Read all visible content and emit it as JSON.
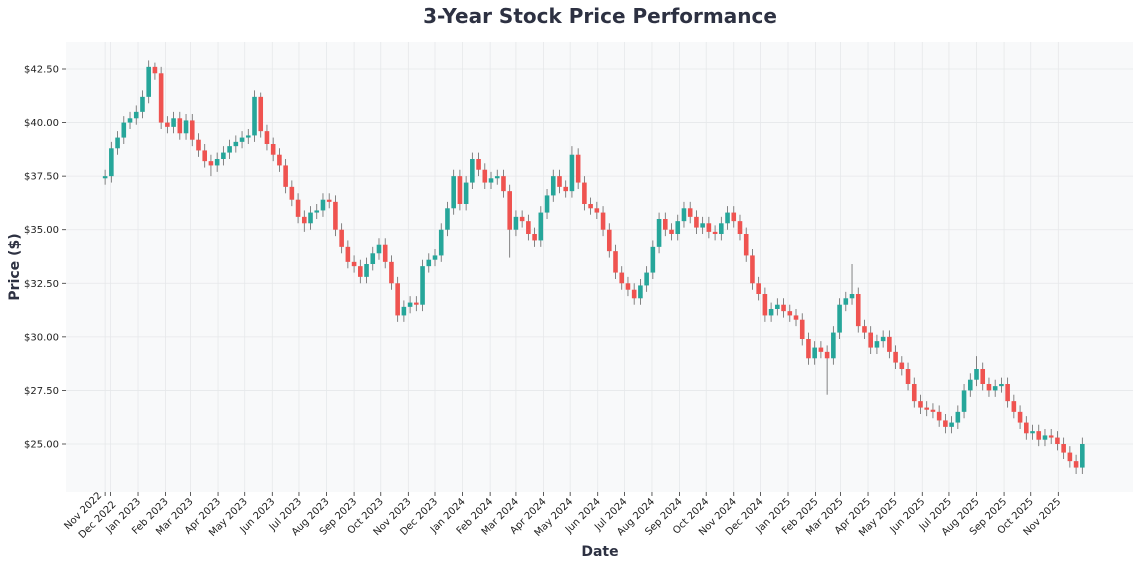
{
  "chart_data": {
    "type": "candlestick",
    "title": "3-Year Stock Price Performance",
    "xlabel": "Date",
    "ylabel": "Price ($)",
    "ylim": [
      22.76,
      43.76
    ],
    "xlim": [
      "2022-10-12",
      "2026-01-24"
    ],
    "grid": true,
    "colors": {
      "up": "#26a69a",
      "down": "#ef5350",
      "title": "#2d3142",
      "plot_bg": "#f8f9fa",
      "grid": "#e6e8ea"
    },
    "yticks": [
      25,
      27.5,
      30,
      32.5,
      35,
      37.5,
      40,
      42.5
    ],
    "ytick_labels": [
      "$25.00",
      "$27.50",
      "$30.00",
      "$32.50",
      "$35.00",
      "$37.50",
      "$40.00",
      "$42.50"
    ],
    "xticks": [
      "2022-11-25",
      "2022-12-01",
      "2023-01-01",
      "2023-02-01",
      "2023-03-01",
      "2023-04-01",
      "2023-05-01",
      "2023-06-01",
      "2023-07-01",
      "2023-08-01",
      "2023-09-01",
      "2023-10-01",
      "2023-11-01",
      "2023-12-01",
      "2024-01-01",
      "2024-02-01",
      "2024-03-01",
      "2024-04-01",
      "2024-05-01",
      "2024-06-01",
      "2024-07-01",
      "2024-08-01",
      "2024-09-01",
      "2024-10-01",
      "2024-11-01",
      "2024-12-01",
      "2025-01-01",
      "2025-02-01",
      "2025-03-01",
      "2025-04-01",
      "2025-05-01",
      "2025-06-01",
      "2025-07-01",
      "2025-08-01",
      "2025-09-01",
      "2025-10-01",
      "2025-11-01"
    ],
    "xtick_labels": [
      "Nov 2022",
      "Dec 2022",
      "Jan 2023",
      "Feb 2023",
      "Mar 2023",
      "Apr 2023",
      "May 2023",
      "Jun 2023",
      "Jul 2023",
      "Aug 2023",
      "Sep 2023",
      "Oct 2023",
      "Nov 2023",
      "Dec 2023",
      "Jan 2024",
      "Feb 2024",
      "Mar 2024",
      "Apr 2024",
      "May 2024",
      "Jun 2024",
      "Jul 2024",
      "Aug 2024",
      "Sep 2024",
      "Oct 2024",
      "Nov 2024",
      "Dec 2024",
      "Jan 2025",
      "Feb 2025",
      "Mar 2025",
      "Apr 2025",
      "May 2025",
      "Jun 2025",
      "Jul 2025",
      "Aug 2025",
      "Sep 2025",
      "Oct 2025",
      "Nov 2025"
    ],
    "dates": [
      "2022-11-25",
      "2022-12-02",
      "2022-12-09",
      "2022-12-16",
      "2022-12-23",
      "2022-12-30",
      "2023-01-06",
      "2023-01-13",
      "2023-01-20",
      "2023-01-27",
      "2023-02-03",
      "2023-02-10",
      "2023-02-17",
      "2023-02-24",
      "2023-03-03",
      "2023-03-10",
      "2023-03-17",
      "2023-03-24",
      "2023-03-31",
      "2023-04-07",
      "2023-04-14",
      "2023-04-21",
      "2023-04-28",
      "2023-05-05",
      "2023-05-12",
      "2023-05-19",
      "2023-05-26",
      "2023-06-02",
      "2023-06-09",
      "2023-06-16",
      "2023-06-23",
      "2023-06-30",
      "2023-07-07",
      "2023-07-14",
      "2023-07-21",
      "2023-07-28",
      "2023-08-04",
      "2023-08-11",
      "2023-08-18",
      "2023-08-25",
      "2023-09-01",
      "2023-09-08",
      "2023-09-15",
      "2023-09-22",
      "2023-09-29",
      "2023-10-06",
      "2023-10-13",
      "2023-10-20",
      "2023-10-27",
      "2023-11-03",
      "2023-11-10",
      "2023-11-17",
      "2023-11-24",
      "2023-12-01",
      "2023-12-08",
      "2023-12-15",
      "2023-12-22",
      "2023-12-29",
      "2024-01-05",
      "2024-01-12",
      "2024-01-19",
      "2024-01-26",
      "2024-02-02",
      "2024-02-09",
      "2024-02-16",
      "2024-02-23",
      "2024-03-01",
      "2024-03-08",
      "2024-03-15",
      "2024-03-22",
      "2024-03-29",
      "2024-04-05",
      "2024-04-12",
      "2024-04-19",
      "2024-04-26",
      "2024-05-03",
      "2024-05-10",
      "2024-05-17",
      "2024-05-24",
      "2024-05-31",
      "2024-06-07",
      "2024-06-14",
      "2024-06-21",
      "2024-06-28",
      "2024-07-05",
      "2024-07-12",
      "2024-07-19",
      "2024-07-26",
      "2024-08-02",
      "2024-08-09",
      "2024-08-16",
      "2024-08-23",
      "2024-08-30",
      "2024-09-06",
      "2024-09-13",
      "2024-09-20",
      "2024-09-27",
      "2024-10-04",
      "2024-10-11",
      "2024-10-18",
      "2024-10-25",
      "2024-11-01",
      "2024-11-08",
      "2024-11-15",
      "2024-11-22",
      "2024-11-29",
      "2024-12-06",
      "2024-12-13",
      "2024-12-20",
      "2024-12-27",
      "2025-01-03",
      "2025-01-10",
      "2025-01-17",
      "2025-01-24",
      "2025-01-31",
      "2025-02-07",
      "2025-02-14",
      "2025-02-21",
      "2025-02-28",
      "2025-03-07",
      "2025-03-14",
      "2025-03-21",
      "2025-03-28",
      "2025-04-04",
      "2025-04-11",
      "2025-04-18",
      "2025-04-25",
      "2025-05-02",
      "2025-05-09",
      "2025-05-16",
      "2025-05-23",
      "2025-05-30",
      "2025-06-06",
      "2025-06-13",
      "2025-06-20",
      "2025-06-27",
      "2025-07-04",
      "2025-07-11",
      "2025-07-18",
      "2025-07-25",
      "2025-08-01",
      "2025-08-08",
      "2025-08-15",
      "2025-08-22",
      "2025-08-29",
      "2025-09-05",
      "2025-09-12",
      "2025-09-19",
      "2025-09-26",
      "2025-10-03",
      "2025-10-10",
      "2025-10-17",
      "2025-10-24",
      "2025-10-31",
      "2025-11-07",
      "2025-11-14",
      "2025-11-21",
      "2025-11-28"
    ],
    "ohlc_columns": [
      "open",
      "high",
      "low",
      "close"
    ],
    "ohlc": [
      [
        37.4,
        37.8,
        37.1,
        37.5
      ],
      [
        37.5,
        39.1,
        37.2,
        38.8
      ],
      [
        38.8,
        39.6,
        38.5,
        39.3
      ],
      [
        39.3,
        40.3,
        39.0,
        40.0
      ],
      [
        40.0,
        40.5,
        39.7,
        40.2
      ],
      [
        40.2,
        40.8,
        39.9,
        40.5
      ],
      [
        40.5,
        41.5,
        40.2,
        41.2
      ],
      [
        41.2,
        42.9,
        40.9,
        42.6
      ],
      [
        42.6,
        42.8,
        42.0,
        42.3
      ],
      [
        42.3,
        42.6,
        39.7,
        40.0
      ],
      [
        40.0,
        40.3,
        39.5,
        39.8
      ],
      [
        39.8,
        40.5,
        39.5,
        40.2
      ],
      [
        40.2,
        40.5,
        39.2,
        39.5
      ],
      [
        39.5,
        40.4,
        39.2,
        40.1
      ],
      [
        40.1,
        40.4,
        38.9,
        39.2
      ],
      [
        39.2,
        39.5,
        38.4,
        38.7
      ],
      [
        38.7,
        39.0,
        37.9,
        38.2
      ],
      [
        38.2,
        38.5,
        37.5,
        38.0
      ],
      [
        38.0,
        38.6,
        37.7,
        38.3
      ],
      [
        38.3,
        38.9,
        38.0,
        38.6
      ],
      [
        38.6,
        39.2,
        38.3,
        38.9
      ],
      [
        38.9,
        39.4,
        38.6,
        39.1
      ],
      [
        39.1,
        39.6,
        38.8,
        39.3
      ],
      [
        39.3,
        39.7,
        39.0,
        39.4
      ],
      [
        39.4,
        41.5,
        39.1,
        41.2
      ],
      [
        41.2,
        41.4,
        39.3,
        39.6
      ],
      [
        39.6,
        39.9,
        38.7,
        39.0
      ],
      [
        39.0,
        39.3,
        38.2,
        38.5
      ],
      [
        38.5,
        38.8,
        37.7,
        38.0
      ],
      [
        38.0,
        38.3,
        36.7,
        37.0
      ],
      [
        37.0,
        37.3,
        36.1,
        36.4
      ],
      [
        36.4,
        36.7,
        35.3,
        35.6
      ],
      [
        35.6,
        35.9,
        34.9,
        35.3
      ],
      [
        35.3,
        36.1,
        35.0,
        35.8
      ],
      [
        35.8,
        36.2,
        35.5,
        35.9
      ],
      [
        35.9,
        36.7,
        35.6,
        36.4
      ],
      [
        36.4,
        36.7,
        36.0,
        36.3
      ],
      [
        36.3,
        36.6,
        34.7,
        35.0
      ],
      [
        35.0,
        35.3,
        33.9,
        34.2
      ],
      [
        34.2,
        34.5,
        33.2,
        33.5
      ],
      [
        33.5,
        33.8,
        33.0,
        33.3
      ],
      [
        33.3,
        33.6,
        32.5,
        32.8
      ],
      [
        32.8,
        33.7,
        32.5,
        33.4
      ],
      [
        33.4,
        34.2,
        33.1,
        33.9
      ],
      [
        33.9,
        34.6,
        33.6,
        34.3
      ],
      [
        34.3,
        34.6,
        33.2,
        33.5
      ],
      [
        33.5,
        33.8,
        32.2,
        32.5
      ],
      [
        32.5,
        32.8,
        30.7,
        31.0
      ],
      [
        31.0,
        31.7,
        30.7,
        31.4
      ],
      [
        31.4,
        31.9,
        31.1,
        31.6
      ],
      [
        31.6,
        31.9,
        31.2,
        31.5
      ],
      [
        31.5,
        33.6,
        31.2,
        33.3
      ],
      [
        33.3,
        33.9,
        33.0,
        33.6
      ],
      [
        33.6,
        34.1,
        33.3,
        33.8
      ],
      [
        33.8,
        35.3,
        33.5,
        35.0
      ],
      [
        35.0,
        36.3,
        34.7,
        36.0
      ],
      [
        36.0,
        37.8,
        35.7,
        37.5
      ],
      [
        37.5,
        37.8,
        35.9,
        36.2
      ],
      [
        36.2,
        37.5,
        35.9,
        37.2
      ],
      [
        37.2,
        38.6,
        36.9,
        38.3
      ],
      [
        38.3,
        38.6,
        37.5,
        37.8
      ],
      [
        37.8,
        38.1,
        36.9,
        37.2
      ],
      [
        37.2,
        37.7,
        36.9,
        37.4
      ],
      [
        37.4,
        37.8,
        37.1,
        37.5
      ],
      [
        37.5,
        37.8,
        36.5,
        36.8
      ],
      [
        36.8,
        37.1,
        33.7,
        35.0
      ],
      [
        35.0,
        35.9,
        34.7,
        35.6
      ],
      [
        35.6,
        35.9,
        35.1,
        35.4
      ],
      [
        35.4,
        35.7,
        34.5,
        34.8
      ],
      [
        34.8,
        35.1,
        34.2,
        34.5
      ],
      [
        34.5,
        36.1,
        34.2,
        35.8
      ],
      [
        35.8,
        36.9,
        35.5,
        36.6
      ],
      [
        36.6,
        37.8,
        36.3,
        37.5
      ],
      [
        37.5,
        37.8,
        36.7,
        37.0
      ],
      [
        37.0,
        37.3,
        36.5,
        36.8
      ],
      [
        36.8,
        38.9,
        36.5,
        38.5
      ],
      [
        38.5,
        38.8,
        36.9,
        37.2
      ],
      [
        37.2,
        37.5,
        35.9,
        36.2
      ],
      [
        36.2,
        36.5,
        35.7,
        36.0
      ],
      [
        36.0,
        36.3,
        35.5,
        35.8
      ],
      [
        35.8,
        36.1,
        34.7,
        35.0
      ],
      [
        35.0,
        35.3,
        33.7,
        34.0
      ],
      [
        34.0,
        34.3,
        32.7,
        33.0
      ],
      [
        33.0,
        33.3,
        32.2,
        32.5
      ],
      [
        32.5,
        32.8,
        31.9,
        32.2
      ],
      [
        32.2,
        32.5,
        31.5,
        31.8
      ],
      [
        31.8,
        32.7,
        31.5,
        32.4
      ],
      [
        32.4,
        33.3,
        32.1,
        33.0
      ],
      [
        33.0,
        34.5,
        32.7,
        34.2
      ],
      [
        34.2,
        35.8,
        33.9,
        35.5
      ],
      [
        35.5,
        35.8,
        34.7,
        35.0
      ],
      [
        35.0,
        35.3,
        34.5,
        34.8
      ],
      [
        34.8,
        35.7,
        34.5,
        35.4
      ],
      [
        35.4,
        36.3,
        35.1,
        36.0
      ],
      [
        36.0,
        36.3,
        35.3,
        35.6
      ],
      [
        35.6,
        35.9,
        34.8,
        35.1
      ],
      [
        35.1,
        35.6,
        34.8,
        35.3
      ],
      [
        35.3,
        35.6,
        34.6,
        34.9
      ],
      [
        34.9,
        35.2,
        34.5,
        34.8
      ],
      [
        34.8,
        35.6,
        34.5,
        35.3
      ],
      [
        35.3,
        36.1,
        35.0,
        35.8
      ],
      [
        35.8,
        36.1,
        35.1,
        35.4
      ],
      [
        35.4,
        35.7,
        34.5,
        34.8
      ],
      [
        34.8,
        35.1,
        33.5,
        33.8
      ],
      [
        33.8,
        34.1,
        32.2,
        32.5
      ],
      [
        32.5,
        32.8,
        31.7,
        32.0
      ],
      [
        32.0,
        32.3,
        30.7,
        31.0
      ],
      [
        31.0,
        31.6,
        30.7,
        31.3
      ],
      [
        31.3,
        31.8,
        31.0,
        31.5
      ],
      [
        31.5,
        31.8,
        30.9,
        31.2
      ],
      [
        31.2,
        31.5,
        30.7,
        31.0
      ],
      [
        31.0,
        31.3,
        30.5,
        30.8
      ],
      [
        30.8,
        31.1,
        29.6,
        29.9
      ],
      [
        29.9,
        30.2,
        28.7,
        29.0
      ],
      [
        29.0,
        29.8,
        28.7,
        29.5
      ],
      [
        29.5,
        29.8,
        29.0,
        29.3
      ],
      [
        29.3,
        29.6,
        27.3,
        29.0
      ],
      [
        29.0,
        30.5,
        28.7,
        30.2
      ],
      [
        30.2,
        31.8,
        29.9,
        31.5
      ],
      [
        31.5,
        32.1,
        31.2,
        31.8
      ],
      [
        31.8,
        33.4,
        31.5,
        32.0
      ],
      [
        32.0,
        32.3,
        30.2,
        30.5
      ],
      [
        30.5,
        30.8,
        29.9,
        30.2
      ],
      [
        30.2,
        30.5,
        29.2,
        29.5
      ],
      [
        29.5,
        30.1,
        29.2,
        29.8
      ],
      [
        29.8,
        30.3,
        29.5,
        30.0
      ],
      [
        30.0,
        30.3,
        29.0,
        29.3
      ],
      [
        29.3,
        29.6,
        28.5,
        28.8
      ],
      [
        28.8,
        29.1,
        28.2,
        28.5
      ],
      [
        28.5,
        28.8,
        27.5,
        27.8
      ],
      [
        27.8,
        28.1,
        26.7,
        27.0
      ],
      [
        27.0,
        27.3,
        26.4,
        26.7
      ],
      [
        26.7,
        27.0,
        26.3,
        26.6
      ],
      [
        26.6,
        26.9,
        26.2,
        26.5
      ],
      [
        26.5,
        26.8,
        25.8,
        26.1
      ],
      [
        26.1,
        26.4,
        25.5,
        25.8
      ],
      [
        25.8,
        26.3,
        25.5,
        26.0
      ],
      [
        26.0,
        26.8,
        25.7,
        26.5
      ],
      [
        26.5,
        27.8,
        26.2,
        27.5
      ],
      [
        27.5,
        28.3,
        27.2,
        28.0
      ],
      [
        28.0,
        29.1,
        27.7,
        28.5
      ],
      [
        28.5,
        28.8,
        27.5,
        27.8
      ],
      [
        27.8,
        28.1,
        27.2,
        27.5
      ],
      [
        27.5,
        28.0,
        27.2,
        27.7
      ],
      [
        27.7,
        28.1,
        27.4,
        27.8
      ],
      [
        27.8,
        28.1,
        26.7,
        27.0
      ],
      [
        27.0,
        27.3,
        26.2,
        26.5
      ],
      [
        26.5,
        26.8,
        25.7,
        26.0
      ],
      [
        26.0,
        26.3,
        25.2,
        25.5
      ],
      [
        25.5,
        25.9,
        25.2,
        25.6
      ],
      [
        25.6,
        25.9,
        24.9,
        25.2
      ],
      [
        25.2,
        25.7,
        24.9,
        25.4
      ],
      [
        25.4,
        25.7,
        25.0,
        25.3
      ],
      [
        25.3,
        25.6,
        24.7,
        25.0
      ],
      [
        25.0,
        25.3,
        24.3,
        24.6
      ],
      [
        24.6,
        24.9,
        23.9,
        24.2
      ],
      [
        24.2,
        24.5,
        23.6,
        23.9
      ],
      [
        23.9,
        25.3,
        23.6,
        25.0
      ]
    ]
  }
}
